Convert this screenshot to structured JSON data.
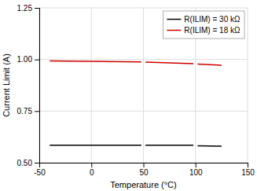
{
  "chart_data": {
    "type": "line",
    "xlabel": "Temperature (°C)",
    "ylabel": "Current Limit (A)",
    "x": [
      -40,
      48,
      null,
      52,
      98,
      null,
      102,
      125
    ],
    "series": [
      {
        "name": "R(ILIM) = 30 kΩ",
        "color": "#000000",
        "values": [
          0.585,
          0.585,
          null,
          0.585,
          0.585,
          null,
          0.582,
          0.58
        ]
      },
      {
        "name": "R(ILIM) = 18 kΩ",
        "color": "#cc0000",
        "values": [
          0.993,
          0.988,
          null,
          0.987,
          0.98,
          null,
          0.978,
          0.972
        ]
      }
    ],
    "xlim": [
      -50,
      150
    ],
    "ylim": [
      0.5,
      1.25
    ],
    "xticks": [
      -50,
      0,
      50,
      100,
      150
    ],
    "yticks": [
      {
        "value": 0.5,
        "label": "0.50"
      },
      {
        "value": 0.75,
        "label": "0.75"
      },
      {
        "value": 1.0,
        "label": "1.00"
      },
      {
        "value": 1.25,
        "label": "1.25"
      }
    ],
    "grid": true,
    "legend": "upper right"
  }
}
